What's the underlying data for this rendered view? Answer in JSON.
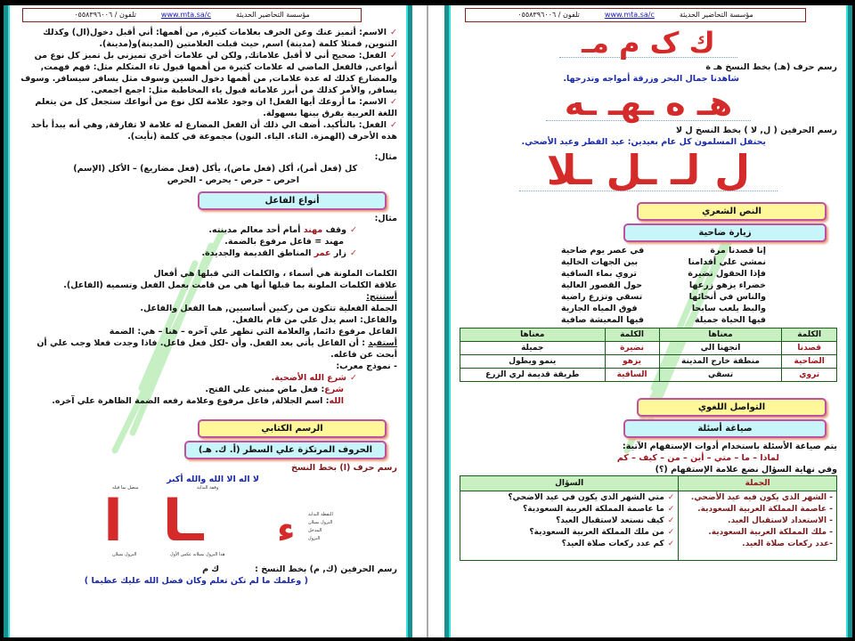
{
  "header": {
    "org": "مؤسسة التحاضير الحديثة",
    "url": "www.mta.sa/c",
    "phone": "تلفون / ٠٥٥٨٣٩٦٠٠٦"
  },
  "left": {
    "paras": [
      "الاسم: أتميز عنك وعن الحرف بعلامات كثيرة, من أهمها: أني أقبل دخول(ال) وكذلك التنوين, فمثلا كلمة (مدينة) اسم, حيث قبلت العلامتين (المدينة)و(مدينة).",
      "الفعل: صحيح أني لا أقبل علاماتك, ولكن لي علامات أخري تميزني بل تميز كل نوع من أنواعي, فالفعل الماضي له علامات كثيرة من أهمها قبول تاء المتكلم مثل: فهم فهمت, والمضارع كذلك له عدة علامات, من أهمها دخول السين وسوف مثل يسافر سيسافر. وسوف يسافر, والأمر كذلك من أبرز علاماته قبول ياء المخاطبة مثل: اجمع اجمعي.",
      "الاسم: ما أروعك أيها الفعل! ان وجود علامة لكل نوع من أنواعك ستجعل كل من يتعلم اللغة العربية يفرق بينها بسهولة.",
      "الفعل: بالتأكيد. أضف الي ذلك أن الفعل المضارع له علامة لا تفارقة, وهي أنه يبدأ بأحد هذه الأحرف (الهمزة. التاء. الياء. النون) مجموعة في كلمة (نأيت)."
    ],
    "example_label": "مثال:",
    "example_line1": "كل (فعل أمر)، أكل (فعل ماض)، يأكل (فعل مضاريع)       –   الأكل (الإسم)",
    "example_line2": "احرص – حرص - يحرص      - الحرص",
    "title_fa3il": "أنواع الفاعل",
    "example2_label": "مثال:",
    "s1_pre": "وقف ",
    "s1_red": "مهند",
    "s1_post": " أمام أحد معالم مدينته.",
    "s1_explain": "مهند = فاعل مرفوع بالضمة.",
    "s2_pre": "زار ",
    "s2_red": "عمر",
    "s2_post": " المناطق القديمة والجديدة.",
    "colored1": "الكلمات الملونة هي أسماء ، والكلمات التي قبلها هي أفعال",
    "colored2": "علاقة الكلمات الملونة بما قبلها أنها هي من قامت بعمل الفعل وتسميه (الفاعل).",
    "conclude_label": "أستنتج:",
    "conclude": [
      "الجملة الفعلية تتكون من ركنين أساسيين, هما الفعل والفاعل.",
      "والفاعل: اسم يدل علي من قام بالفعل.",
      "الفاعل مرفوع دائما, والعلامة التي تظهر علي آخره – هنا – هي: الضمة"
    ],
    "benefit_label": "أستفيد",
    "benefit": " : أن الفاعل يأتي بعد الفعل. وأن -لكل فعل فاعل. فاذا وجدت فعلا وجب علي أن أبحث عن فاعله.",
    "model_label": "- نموذج معرب:",
    "model_sentence": "شرع الله الأضحية.",
    "parse1_word": "شرع",
    "parse1": ": فعل ماض مبني علي الفتح.",
    "parse2_word": "الله",
    "parse2": ": اسم الجلالة, فاعل مرفوع وعلامة رفعه الضمة الظاهرة علي آخره.",
    "title_rasm": "الرسم الكتابي",
    "title_huruf": "الحروف المرتكزة علي السطر (أ. ك. هـ)",
    "alif_label": "رسم حرف (ا) بخط النسخ",
    "alif_sentence": "لا اله الا الله والله أكبر",
    "alif_glyphs": "ـا  ا",
    "hamza_glyph": "ء",
    "notes": [
      "متصل بما قبله",
      "وقفة البداية",
      "النزول بميلان",
      "هذا النزول بميلانه عكس الأول",
      "النقطة البداية",
      "النزول بميلان",
      "المدخل",
      "النزول"
    ],
    "km_label": "رسم الحرفين (ك, م) بخط النسخ :",
    "km_letters": "ك   م",
    "km_sentence": "( وعلمك ما لم تكن تعلم وكان فضل الله عليك عظيما )"
  },
  "right": {
    "top_glyphs": "ك ک م مـ",
    "ha_label": "رسم حرف (هـ) بخط النسخ        هـ  ة",
    "ha_sentence": "شاهدنا جمال البحر وزرقة أمواجه وتدرجها.",
    "ha_glyphs": "هـ ه ـهـ ـه",
    "la_label": "رسم الحرفين ( ل, لا ) بخط النسخ      ل   لا",
    "la_sentence": "يحتفل المسلمون كل عام بعيدين: عيد الفطر وعيد الأضحي.",
    "la_glyphs": "ل لـ ـل ـلا",
    "title_poem": "النص الشعري",
    "title_visit": "زيارة ضاحية",
    "poem": [
      [
        "إنا قصدنا مرة",
        "في عصر يوم ضاحية"
      ],
      [
        "نمشي علي أقدامنا",
        "بين الجهات الخالية"
      ],
      [
        "فإذا الحقول نضيرة",
        "تروي بماء الساقية"
      ],
      [
        "خضراء يزهو زرعها",
        "حول القصور العالية"
      ],
      [
        "والناس في أنحائها",
        "تسقي وتزرع راضية"
      ],
      [
        "والبط يلعب سابحا",
        "فوق المياه الجارية"
      ],
      [
        "فيها الحياة جميلة",
        "فيها المعيشة صافية"
      ]
    ],
    "vocab_headers": [
      "الكلمة",
      "معناها",
      "الكلمة",
      "معناها"
    ],
    "vocab_rows": [
      [
        "قصدنا",
        "اتجهنا الي",
        "نضيرة",
        "جميلة"
      ],
      [
        "الضاحية",
        "منطقة خارج المدينة",
        "يزهو",
        "ينمو ويطول"
      ],
      [
        "تروي",
        "تسقي",
        "الساقية",
        "طريقة قديمة لري الزرع"
      ]
    ],
    "title_comm": "التواصل اللغوي",
    "title_questions": "صياغة أسئلة",
    "q_intro": "يتم صياغة الأسئلة باستخدام أدوات الإستفهام الآتية:",
    "q_tools": "لماذا – ما – متي – أين – من – كيف – كم",
    "q_end": "وفي نهاية السؤال نضع علامة الإستفهام (؟)",
    "q_headers": [
      "الجملة",
      "السؤال"
    ],
    "q_rows": [
      [
        "- الشهر الذي يكون فيه عيد الأضحي.",
        "متي الشهر الذي يكون في عيد الاضحي؟"
      ],
      [
        "- عاصمة المملكة العربية السعودية.",
        "ما عاصمة المملكة العربية السعودية؟"
      ],
      [
        "- الاستعداد لاستقبال العيد.",
        "كيف نستعد لاستقبال العيد؟"
      ],
      [
        "- ملك المملكة العربية السعودية.",
        "من ملك المملكة العربية السعودية؟"
      ],
      [
        "-عدد ركعات صلاة العيد.",
        "كم عدد ركعات صلاة العيد؟"
      ]
    ]
  },
  "watermark": "مؤسسة التحاضير الحديثة",
  "colors": {
    "frame": "#1a8f8f",
    "accent_red": "#d42a2a",
    "blue_text": "#1a2aa8",
    "yellow_title": "#fff79a",
    "cyan_title": "#c8f5fa",
    "table_header": "#c9f0c0"
  }
}
